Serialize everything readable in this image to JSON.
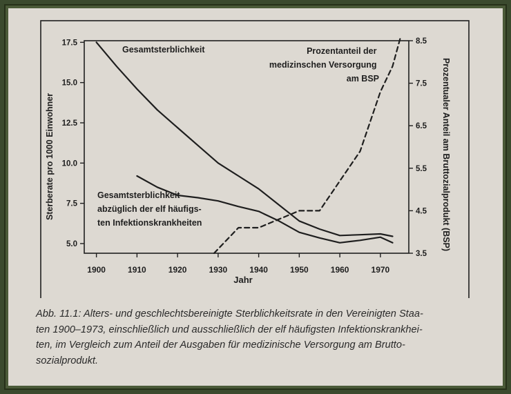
{
  "chart_data": {
    "type": "line",
    "xlabel": "Jahr",
    "ylabel_left": "Sterberate pro 1000 Einwohner",
    "ylabel_right": "Prozentualer Anteil am Bruttozialprodukt (BSP)",
    "x_ticks": [
      "1900",
      "1910",
      "1920",
      "1930",
      "1940",
      "1950",
      "1960",
      "1970"
    ],
    "y_left_ticks": [
      "17.5",
      "15.0",
      "12.5",
      "10.0",
      "7.5",
      "5.0"
    ],
    "y_right_ticks": [
      "8.5",
      "7.5",
      "6.5",
      "5.5",
      "4.5",
      "3.5"
    ],
    "xlim": [
      1897,
      1977
    ],
    "ylim_left": [
      4.4,
      17.6
    ],
    "ylim_right": [
      3.5,
      8.5
    ],
    "grid": false,
    "series": [
      {
        "name": "Gesamtsterblichkeit",
        "axis": "left",
        "style": "solid",
        "x": [
          1900,
          1905,
          1910,
          1915,
          1920,
          1925,
          1930,
          1935,
          1940,
          1945,
          1950,
          1955,
          1960,
          1965,
          1970,
          1973
        ],
        "values": [
          17.5,
          16.0,
          14.6,
          13.3,
          12.2,
          11.1,
          10.0,
          9.2,
          8.4,
          7.4,
          6.4,
          5.9,
          5.5,
          5.55,
          5.6,
          5.45
        ]
      },
      {
        "name": "Gesamtsterblichkeit abzüglich der elf häufigsten Infektionskrankheiten",
        "axis": "left",
        "style": "solid",
        "x": [
          1910,
          1915,
          1920,
          1925,
          1930,
          1935,
          1940,
          1945,
          1950,
          1955,
          1960,
          1965,
          1970,
          1973
        ],
        "values": [
          9.2,
          8.5,
          8.0,
          7.85,
          7.65,
          7.3,
          7.0,
          6.4,
          5.7,
          5.35,
          5.05,
          5.2,
          5.4,
          5.05
        ]
      },
      {
        "name": "Prozentanteil der medizinschen Versorgung am BSP",
        "axis": "right",
        "style": "dashed",
        "x": [
          1929,
          1935,
          1940,
          1945,
          1950,
          1955,
          1960,
          1965,
          1970,
          1973,
          1975
        ],
        "values": [
          3.5,
          4.1,
          4.1,
          4.3,
          4.5,
          4.5,
          5.2,
          5.9,
          7.3,
          7.9,
          8.6
        ]
      }
    ],
    "annotations": [
      {
        "id": "total",
        "text": "Gesamtsterblichkeit"
      },
      {
        "id": "excl",
        "lines": [
          "Gesamtsterblichkeit",
          "abzüglich der elf häufigs-",
          "ten Infektionskrankheiten"
        ]
      },
      {
        "id": "gnp",
        "lines": [
          "Prozentanteil der",
          "medizinschen Versorgung",
          "am BSP"
        ]
      }
    ]
  },
  "caption": {
    "lines": [
      "Abb. 11.1: Alters- und geschlechtsbereinigte Sterblichkeitsrate in den Vereinigten Staa-",
      "ten 1900–1973, einschließlich und ausschließlich der elf häufigsten Infektionskrankhei-",
      "ten, im Vergleich zum Anteil der Ausgaben für medizinische Versorgung am Brutto-",
      "sozialprodukt."
    ]
  },
  "colors": {
    "paper": "#ddd9d2",
    "ink": "#1e1e1e",
    "frame": "#4a5a38"
  }
}
